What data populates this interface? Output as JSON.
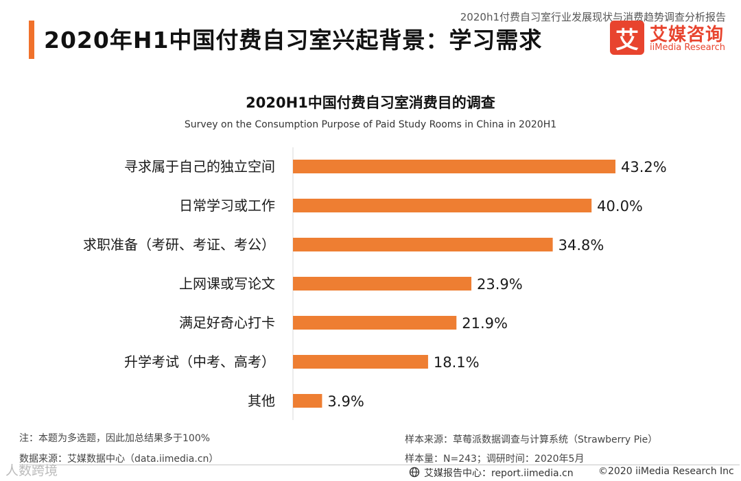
{
  "header": {
    "report_name": "2020h1付费自习室行业发展现状与消费趋势调查分析报告",
    "title": "2020年H1中国付费自习室兴起背景：学习需求",
    "logo_mark": "艾",
    "logo_cn": "艾媒咨询",
    "logo_en": "iiMedia Research"
  },
  "colors": {
    "accent": "#F0712B",
    "bar": "#EE7E32",
    "brand_red": "#E8442E"
  },
  "chart_data": {
    "type": "bar",
    "orientation": "horizontal",
    "title": "2020H1中国付费自习室消费目的调查",
    "subtitle": "Survey on the Consumption Purpose of Paid Study Rooms in China in 2020H1",
    "categories": [
      "寻求属于自己的独立空间",
      "日常学习或工作",
      "求职准备（考研、考证、考公）",
      "上网课或写论文",
      "满足好奇心打卡",
      "升学考试（中考、高考）",
      "其他"
    ],
    "values": [
      43.2,
      40.0,
      34.8,
      23.9,
      21.9,
      18.1,
      3.9
    ],
    "value_labels": [
      "43.2%",
      "40.0%",
      "34.8%",
      "23.9%",
      "21.9%",
      "18.1%",
      "3.9%"
    ],
    "unit": "%",
    "xlim": [
      0,
      45
    ],
    "grid": false,
    "legend": "none"
  },
  "footer": {
    "note": "注：本题为多选题，因此加总结果多于100%",
    "data_source": "数据来源：艾媒数据中心（data.iimedia.cn）",
    "sample_source": "样本来源：草莓派数据调查与计算系统（Strawberry Pie）",
    "sample_size": "样本量：N=243；调研时间：2020年5月",
    "report_center": "艾媒报告中心：report.iimedia.cn",
    "copyright": "©2020  iiMedia Research  Inc",
    "watermark": "人数跨境"
  }
}
